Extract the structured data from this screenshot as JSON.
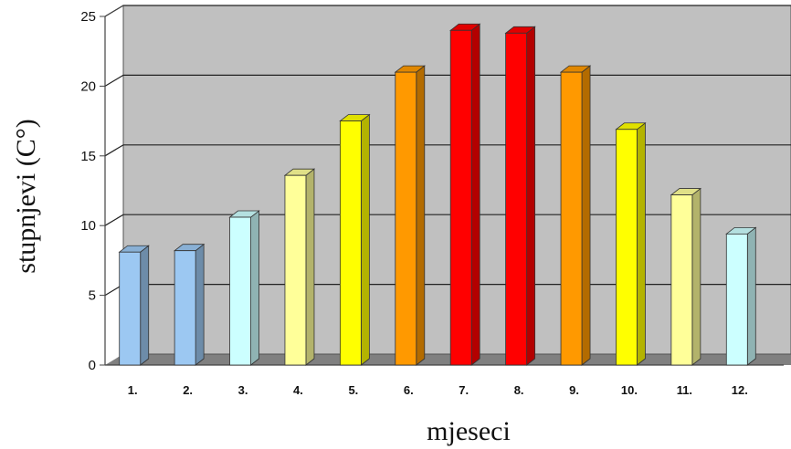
{
  "chart_data": {
    "type": "bar",
    "xlabel": "mjeseci",
    "ylabel": "stupnjevi (C°)",
    "categories": [
      "1.",
      "2.",
      "3.",
      "4.",
      "5.",
      "6.",
      "7.",
      "8.",
      "9.",
      "10.",
      "11.",
      "12."
    ],
    "values": [
      8.1,
      8.2,
      10.6,
      13.6,
      17.5,
      21.0,
      24.0,
      23.8,
      21.0,
      16.9,
      12.2,
      9.4
    ],
    "bar_colors": [
      "#9cc8f2",
      "#9cc8f2",
      "#ccffff",
      "#ffff99",
      "#ffff00",
      "#ff9900",
      "#ff0000",
      "#ff0000",
      "#ff9900",
      "#ffff00",
      "#ffff99",
      "#ccffff"
    ],
    "yticks": [
      "0",
      "5",
      "10",
      "15",
      "20",
      "25"
    ],
    "ylim": [
      0,
      25
    ],
    "grid": true,
    "wall_color": "#c0c0c0",
    "floor_color": "#808080"
  }
}
